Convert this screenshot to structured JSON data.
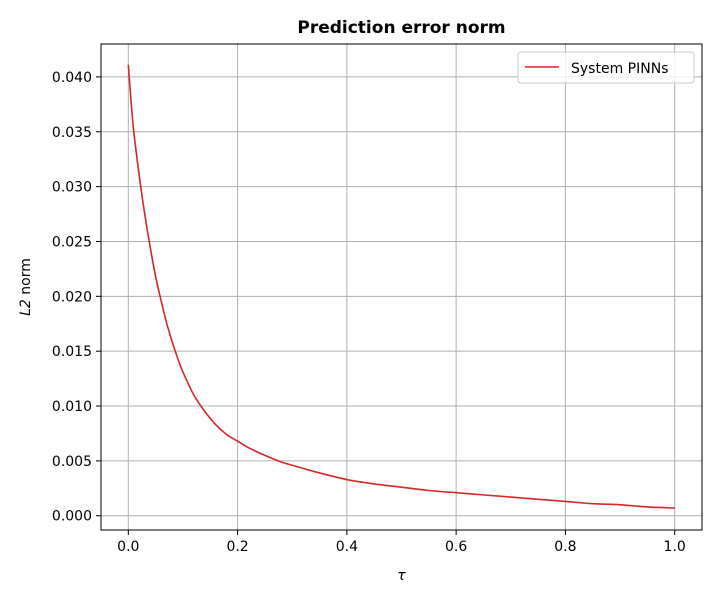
{
  "chart_data": {
    "type": "line",
    "title": "Prediction error norm",
    "xlabel": "τ",
    "ylabel_italic": "L2",
    "ylabel_rest": " norm",
    "xlim": [
      -0.05,
      1.05
    ],
    "ylim": [
      -0.0013,
      0.043
    ],
    "xticks": [
      0.0,
      0.2,
      0.4,
      0.6,
      0.8,
      1.0
    ],
    "xtick_labels": [
      "0.0",
      "0.2",
      "0.4",
      "0.6",
      "0.8",
      "1.0"
    ],
    "yticks": [
      0.0,
      0.005,
      0.01,
      0.015,
      0.02,
      0.025,
      0.03,
      0.035,
      0.04
    ],
    "ytick_labels": [
      "0.000",
      "0.005",
      "0.010",
      "0.015",
      "0.020",
      "0.025",
      "0.030",
      "0.035",
      "0.040"
    ],
    "grid": true,
    "legend_position": "top-right",
    "colors": {
      "series": "#d62728",
      "grid": "#b0b0b0",
      "axis": "#000000"
    },
    "series": [
      {
        "name": "System PINNs",
        "x": [
          0.0,
          0.005,
          0.01,
          0.02,
          0.03,
          0.04,
          0.05,
          0.06,
          0.07,
          0.08,
          0.09,
          0.1,
          0.12,
          0.14,
          0.16,
          0.18,
          0.2,
          0.22,
          0.25,
          0.28,
          0.3,
          0.35,
          0.4,
          0.45,
          0.5,
          0.55,
          0.6,
          0.65,
          0.7,
          0.75,
          0.8,
          0.85,
          0.9,
          0.95,
          1.0
        ],
        "y": [
          0.0411,
          0.0378,
          0.035,
          0.031,
          0.0275,
          0.0245,
          0.0218,
          0.0196,
          0.0176,
          0.0159,
          0.0144,
          0.0131,
          0.011,
          0.0095,
          0.0083,
          0.0074,
          0.0068,
          0.0062,
          0.0055,
          0.0049,
          0.0046,
          0.0039,
          0.0033,
          0.0029,
          0.0026,
          0.0023,
          0.0021,
          0.0019,
          0.0017,
          0.0015,
          0.0013,
          0.0011,
          0.001,
          0.0008,
          0.0007
        ]
      }
    ]
  }
}
